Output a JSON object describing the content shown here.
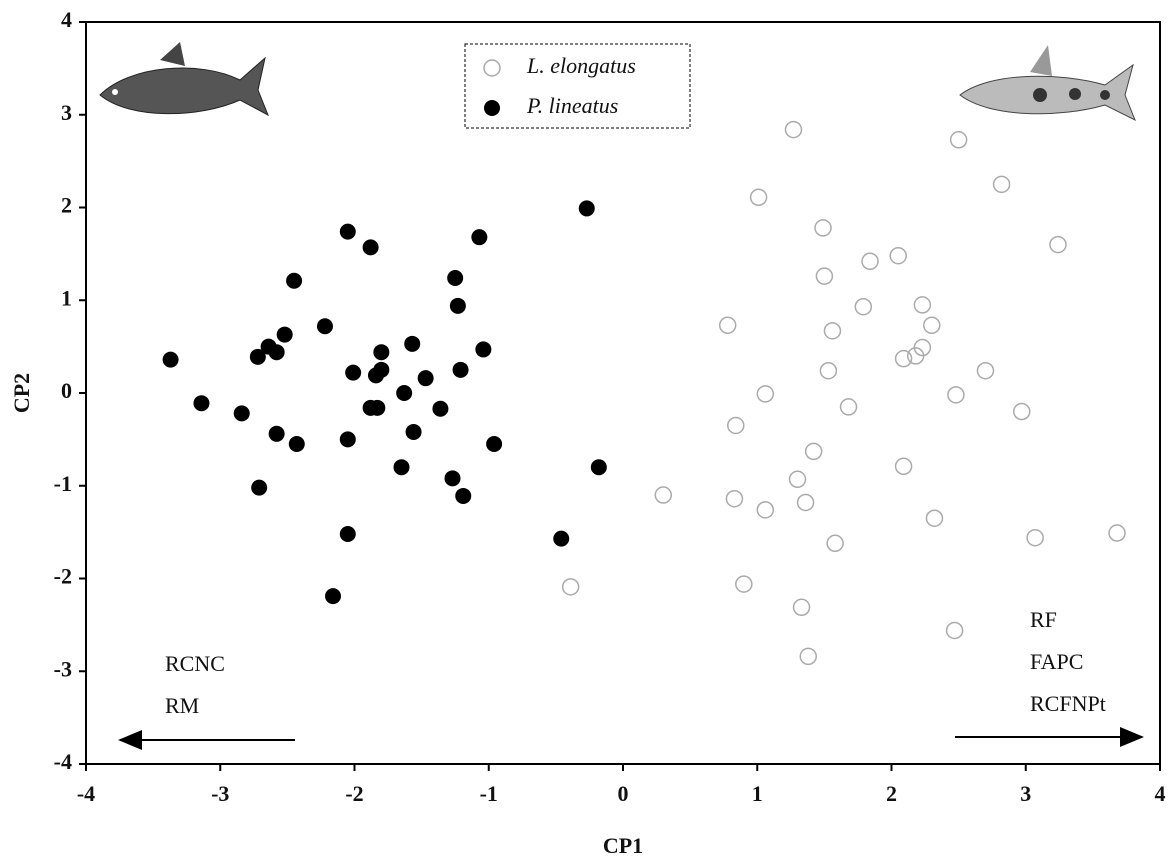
{
  "chart_data": {
    "type": "scatter",
    "x_label": "CP1",
    "y_label": "CP2",
    "xlim": [
      -4,
      4
    ],
    "ylim": [
      -4,
      4
    ],
    "xticks": [
      -4,
      -3,
      -2,
      -1,
      0,
      1,
      2,
      3,
      4
    ],
    "yticks": [
      -4,
      -3,
      -2,
      -1,
      0,
      1,
      2,
      3,
      4
    ],
    "annotations": [
      "RCNC",
      "RM",
      "RF",
      "FAPC",
      "RCFNPt"
    ],
    "series": [
      {
        "name": "L. elongatus",
        "color": "#aaaaaa",
        "filled": false,
        "x": [
          -0.39,
          0.3,
          0.78,
          0.84,
          0.83,
          0.9,
          1.01,
          1.06,
          1.06,
          1.27,
          1.3,
          1.33,
          1.36,
          1.38,
          1.42,
          1.49,
          1.5,
          1.53,
          1.56,
          1.58,
          1.68,
          1.79,
          1.84,
          2.05,
          2.09,
          2.09,
          2.18,
          2.23,
          2.23,
          2.3,
          2.32,
          2.47,
          2.48,
          2.5,
          2.7,
          2.82,
          2.97,
          3.07,
          3.24,
          3.68
        ],
        "y": [
          -2.09,
          -1.1,
          0.73,
          -0.35,
          -1.14,
          -2.06,
          2.11,
          -0.01,
          -1.26,
          2.84,
          -0.93,
          -2.31,
          -1.18,
          -2.84,
          -0.63,
          1.78,
          1.26,
          0.24,
          0.67,
          -1.62,
          -0.15,
          0.93,
          1.42,
          1.48,
          -0.79,
          0.37,
          0.4,
          0.49,
          0.95,
          0.73,
          -1.35,
          -2.56,
          -0.02,
          2.73,
          0.24,
          2.25,
          -0.2,
          -1.56,
          1.6,
          -1.51
        ]
      },
      {
        "name": "P. lineatus",
        "color": "#000000",
        "filled": true,
        "x": [
          -3.37,
          -3.14,
          -2.84,
          -2.71,
          -2.72,
          -2.64,
          -2.58,
          -2.52,
          -2.58,
          -2.45,
          -2.43,
          -2.22,
          -2.16,
          -2.05,
          -2.01,
          -2.05,
          -2.05,
          -1.88,
          -1.88,
          -1.84,
          -1.8,
          -1.8,
          -1.83,
          -1.63,
          -1.65,
          -1.57,
          -1.56,
          -1.47,
          -1.36,
          -1.25,
          -1.23,
          -1.21,
          -1.27,
          -1.19,
          -1.07,
          -1.04,
          -0.96,
          -0.46,
          -0.27,
          -0.18
        ],
        "y": [
          0.36,
          -0.11,
          -0.22,
          -1.02,
          0.39,
          0.5,
          0.44,
          0.63,
          -0.44,
          1.21,
          -0.55,
          0.72,
          -2.19,
          1.74,
          0.22,
          -0.5,
          -1.52,
          1.57,
          -0.16,
          0.19,
          0.44,
          0.25,
          -0.16,
          0.0,
          -0.8,
          0.53,
          -0.42,
          0.16,
          -0.17,
          1.24,
          0.94,
          0.25,
          -0.92,
          -1.11,
          1.68,
          0.47,
          -0.55,
          -1.57,
          1.99,
          -0.8
        ]
      }
    ]
  }
}
